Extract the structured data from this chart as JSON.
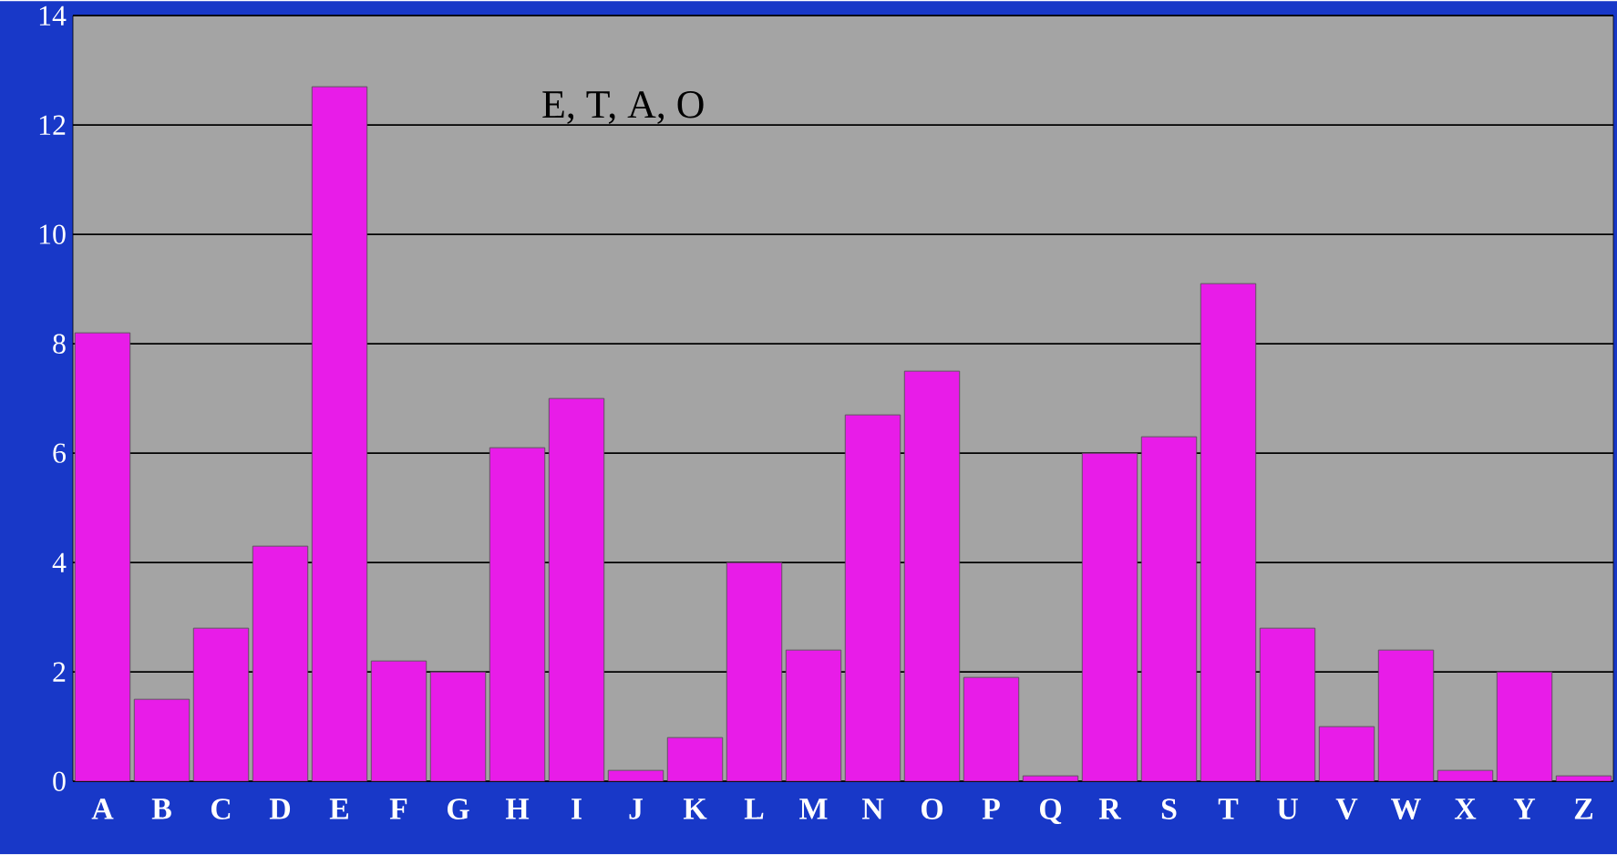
{
  "chart_data": {
    "type": "bar",
    "categories": [
      "A",
      "B",
      "C",
      "D",
      "E",
      "F",
      "G",
      "H",
      "I",
      "J",
      "K",
      "L",
      "M",
      "N",
      "O",
      "P",
      "Q",
      "R",
      "S",
      "T",
      "U",
      "V",
      "W",
      "X",
      "Y",
      "Z"
    ],
    "values": [
      8.2,
      1.5,
      2.8,
      4.3,
      12.7,
      2.2,
      2.0,
      6.1,
      7.0,
      0.2,
      0.8,
      4.0,
      2.4,
      6.7,
      7.5,
      1.9,
      0.1,
      6.0,
      6.3,
      9.1,
      2.8,
      1.0,
      2.4,
      0.2,
      2.0,
      0.1
    ],
    "color": "#e81ce8",
    "ylim": [
      0,
      14
    ],
    "yticks": [
      0,
      2,
      4,
      6,
      8,
      10,
      12,
      14
    ],
    "grid": "y",
    "annotations": [
      "E, T, A, O"
    ]
  }
}
